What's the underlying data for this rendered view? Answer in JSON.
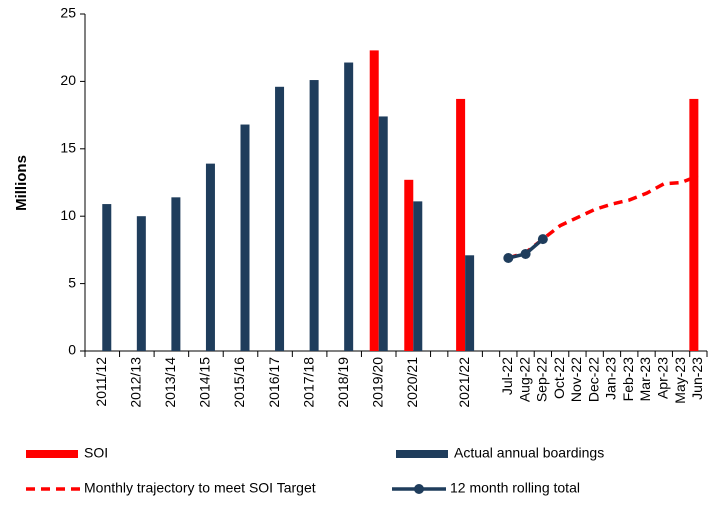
{
  "chart_data": {
    "type": "bar",
    "y_label": "Millions",
    "categories": [
      "2011/12",
      "2012/13",
      "2013/14",
      "2014/15",
      "2015/16",
      "2016/17",
      "2017/18",
      "2018/19",
      "2019/20",
      "2020/21",
      null,
      "2021/22",
      null,
      "Jul-22",
      "Aug-22",
      "Sep-22",
      "Oct-22",
      "Nov-22",
      "Dec-22",
      "Jan-23",
      "Feb-23",
      "Mar-23",
      "Apr-23",
      "May-23",
      "Jun-23"
    ],
    "series": [
      {
        "name": "SOI",
        "type": "bar",
        "color": "#ff0000",
        "values": [
          null,
          null,
          null,
          null,
          null,
          null,
          null,
          null,
          22.3,
          12.7,
          null,
          18.7,
          null,
          null,
          null,
          null,
          null,
          null,
          null,
          null,
          null,
          null,
          null,
          null,
          18.7
        ]
      },
      {
        "name": "Actual annual boardings",
        "type": "bar",
        "color": "#1f3d5c",
        "values": [
          10.9,
          10.0,
          11.4,
          13.9,
          16.8,
          19.6,
          20.1,
          21.4,
          17.4,
          11.1,
          null,
          7.1,
          null,
          null,
          null,
          null,
          null,
          null,
          null,
          null,
          null,
          null,
          null,
          null,
          null
        ]
      },
      {
        "name": "Monthly trajectory to meet SOI Target",
        "type": "line",
        "dashed": true,
        "markers": false,
        "color": "#ff0000",
        "values": [
          null,
          null,
          null,
          null,
          null,
          null,
          null,
          null,
          null,
          null,
          null,
          null,
          null,
          6.9,
          7.3,
          8.3,
          9.3,
          9.9,
          10.5,
          10.9,
          11.2,
          11.7,
          12.4,
          12.5,
          13.0
        ]
      },
      {
        "name": "12 month rolling total",
        "type": "line",
        "dashed": false,
        "markers": true,
        "color": "#1f3d5c",
        "values": [
          null,
          null,
          null,
          null,
          null,
          null,
          null,
          null,
          null,
          null,
          null,
          null,
          null,
          6.9,
          7.2,
          8.3,
          null,
          null,
          null,
          null,
          null,
          null,
          null,
          null,
          null
        ]
      }
    ],
    "ylim": [
      0,
      25
    ],
    "yticks": [
      0,
      5,
      10,
      15,
      20,
      25
    ],
    "grid": false
  }
}
